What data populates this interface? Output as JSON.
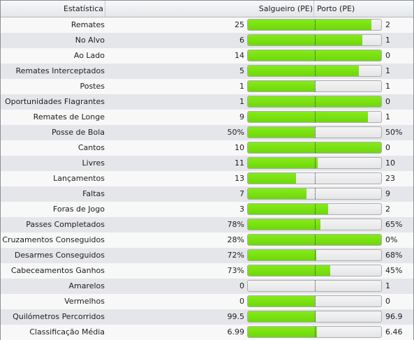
{
  "header": {
    "stat_col": "Estatística",
    "home_team": "Salgueiro (PE)",
    "away_team": "Porto (PE)"
  },
  "colors": {
    "bar_fill": "#6ed80a",
    "bar_empty": "#e6e6e6"
  },
  "stats": [
    {
      "label": "Remates",
      "home": "25",
      "away": "2",
      "home_share": 0.926
    },
    {
      "label": "No Alvo",
      "home": "6",
      "away": "1",
      "home_share": 0.857
    },
    {
      "label": "Ao Lado",
      "home": "14",
      "away": "0",
      "home_share": 1.0
    },
    {
      "label": "Remates Interceptados",
      "home": "5",
      "away": "1",
      "home_share": 0.833
    },
    {
      "label": "Postes",
      "home": "1",
      "away": "1",
      "home_share": 0.5
    },
    {
      "label": "Oportunidades Flagrantes",
      "home": "1",
      "away": "0",
      "home_share": 1.0
    },
    {
      "label": "Remates de Longe",
      "home": "9",
      "away": "1",
      "home_share": 0.9
    },
    {
      "label": "Posse de Bola",
      "home": "50%",
      "away": "50%",
      "home_share": 0.5
    },
    {
      "label": "Cantos",
      "home": "10",
      "away": "0",
      "home_share": 1.0
    },
    {
      "label": "Livres",
      "home": "11",
      "away": "10",
      "home_share": 0.524
    },
    {
      "label": "Lançamentos",
      "home": "13",
      "away": "23",
      "home_share": 0.361
    },
    {
      "label": "Faltas",
      "home": "7",
      "away": "9",
      "home_share": 0.4375
    },
    {
      "label": "Foras de Jogo",
      "home": "3",
      "away": "2",
      "home_share": 0.6
    },
    {
      "label": "Passes Completados",
      "home": "78%",
      "away": "65%",
      "home_share": 0.545
    },
    {
      "label": "Cruzamentos Conseguidos",
      "home": "28%",
      "away": "0%",
      "home_share": 1.0
    },
    {
      "label": "Desarmes Conseguidos",
      "home": "72%",
      "away": "68%",
      "home_share": 0.514
    },
    {
      "label": "Cabeceamentos Ganhos",
      "home": "73%",
      "away": "45%",
      "home_share": 0.619
    },
    {
      "label": "Amarelos",
      "home": "0",
      "away": "1",
      "home_share": 0.0
    },
    {
      "label": "Vermelhos",
      "home": "0",
      "away": "0",
      "home_share": 0.5
    },
    {
      "label": "Quilómetros Percorridos",
      "home": "99.5",
      "away": "96.9",
      "home_share": 0.507
    },
    {
      "label": "Classificação Média",
      "home": "6.99",
      "away": "6.46",
      "home_share": 0.52
    }
  ]
}
